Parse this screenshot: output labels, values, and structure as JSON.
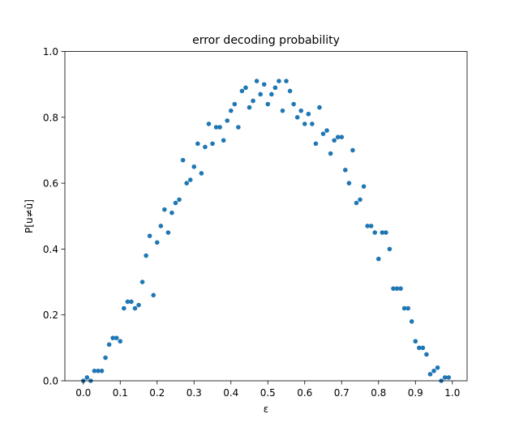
{
  "chart_data": {
    "type": "scatter",
    "title": "error decoding probability",
    "xlabel": "ε",
    "ylabel": "P[u≠û]",
    "xlim": [
      -0.05,
      1.04
    ],
    "ylim": [
      0,
      1.0
    ],
    "xticks": [
      0.0,
      0.1,
      0.2,
      0.3,
      0.4,
      0.5,
      0.6,
      0.7,
      0.8,
      0.9,
      1.0
    ],
    "xtick_labels": [
      "0.0",
      "0.1",
      "0.2",
      "0.3",
      "0.4",
      "0.5",
      "0.6",
      "0.7",
      "0.8",
      "0.9",
      "1.0"
    ],
    "yticks": [
      0.0,
      0.2,
      0.4,
      0.6,
      0.8,
      1.0
    ],
    "ytick_labels": [
      "0.0",
      "0.2",
      "0.4",
      "0.6",
      "0.8",
      "1.0"
    ],
    "grid": false,
    "marker_color": "#1f77b4",
    "x": [
      0.0,
      0.01,
      0.02,
      0.03,
      0.04,
      0.05,
      0.06,
      0.07,
      0.08,
      0.09,
      0.1,
      0.11,
      0.12,
      0.13,
      0.14,
      0.15,
      0.16,
      0.17,
      0.18,
      0.19,
      0.2,
      0.21,
      0.22,
      0.23,
      0.24,
      0.25,
      0.26,
      0.27,
      0.28,
      0.29,
      0.3,
      0.31,
      0.32,
      0.33,
      0.34,
      0.35,
      0.36,
      0.37,
      0.38,
      0.39,
      0.4,
      0.41,
      0.42,
      0.43,
      0.44,
      0.45,
      0.46,
      0.47,
      0.48,
      0.49,
      0.5,
      0.51,
      0.52,
      0.53,
      0.54,
      0.55,
      0.56,
      0.57,
      0.58,
      0.59,
      0.6,
      0.61,
      0.62,
      0.63,
      0.64,
      0.65,
      0.66,
      0.67,
      0.68,
      0.69,
      0.7,
      0.71,
      0.72,
      0.73,
      0.74,
      0.75,
      0.76,
      0.77,
      0.78,
      0.79,
      0.8,
      0.81,
      0.82,
      0.83,
      0.84,
      0.85,
      0.86,
      0.87,
      0.88,
      0.89,
      0.9,
      0.91,
      0.92,
      0.93,
      0.94,
      0.95,
      0.96,
      0.97,
      0.98,
      0.99
    ],
    "y": [
      0.0,
      0.01,
      0.0,
      0.03,
      0.03,
      0.03,
      0.07,
      0.11,
      0.13,
      0.13,
      0.12,
      0.22,
      0.24,
      0.24,
      0.22,
      0.23,
      0.3,
      0.38,
      0.44,
      0.26,
      0.42,
      0.47,
      0.52,
      0.45,
      0.51,
      0.54,
      0.55,
      0.67,
      0.6,
      0.61,
      0.65,
      0.72,
      0.63,
      0.71,
      0.78,
      0.72,
      0.77,
      0.77,
      0.73,
      0.79,
      0.82,
      0.84,
      0.77,
      0.88,
      0.89,
      0.83,
      0.85,
      0.91,
      0.87,
      0.9,
      0.84,
      0.87,
      0.89,
      0.91,
      0.82,
      0.91,
      0.88,
      0.84,
      0.8,
      0.82,
      0.78,
      0.81,
      0.78,
      0.72,
      0.83,
      0.75,
      0.76,
      0.69,
      0.73,
      0.74,
      0.74,
      0.64,
      0.6,
      0.7,
      0.54,
      0.55,
      0.59,
      0.47,
      0.47,
      0.45,
      0.37,
      0.45,
      0.45,
      0.4,
      0.28,
      0.28,
      0.28,
      0.22,
      0.22,
      0.18,
      0.12,
      0.1,
      0.1,
      0.08,
      0.02,
      0.03,
      0.04,
      0.0,
      0.01,
      0.01
    ]
  }
}
